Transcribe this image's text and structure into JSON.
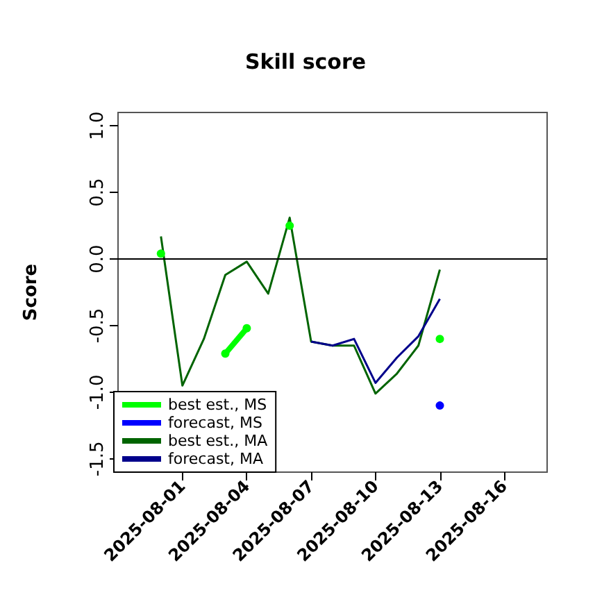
{
  "chart_data": {
    "type": "line",
    "title": "Skill score",
    "ylabel": "Score",
    "x": [
      "2025-07-31",
      "2025-08-01",
      "2025-08-02",
      "2025-08-03",
      "2025-08-04",
      "2025-08-05",
      "2025-08-06",
      "2025-08-07",
      "2025-08-08",
      "2025-08-09",
      "2025-08-10",
      "2025-08-11",
      "2025-08-12",
      "2025-08-13"
    ],
    "series": [
      {
        "name": "best est., MS",
        "color": "#00ff00",
        "marker": "circle",
        "values": [
          0.04,
          null,
          null,
          -0.71,
          -0.52,
          null,
          0.25,
          null,
          null,
          null,
          null,
          null,
          null,
          -0.6
        ]
      },
      {
        "name": "forecast, MS",
        "color": "#0000ff",
        "marker": "circle",
        "values": [
          null,
          null,
          null,
          null,
          null,
          null,
          null,
          null,
          null,
          null,
          null,
          null,
          null,
          -1.1
        ]
      },
      {
        "name": "best est., MA",
        "color": "#006400",
        "values": [
          0.17,
          -0.95,
          -0.6,
          -0.12,
          -0.02,
          -0.26,
          0.31,
          -0.62,
          -0.65,
          -0.65,
          -1.01,
          -0.86,
          -0.65,
          -0.08
        ]
      },
      {
        "name": "forecast, MA",
        "color": "#00008b",
        "values": [
          null,
          null,
          null,
          null,
          null,
          null,
          null,
          -0.62,
          -0.65,
          -0.6,
          -0.93,
          -0.74,
          -0.58,
          -0.3
        ]
      }
    ],
    "xlim": [
      "2025-07-29",
      "2025-08-18"
    ],
    "xticks": [
      "2025-08-01",
      "2025-08-04",
      "2025-08-07",
      "2025-08-10",
      "2025-08-13",
      "2025-08-16"
    ],
    "ylim": [
      -1.6,
      1.1
    ],
    "yticks": [
      {
        "value": -1.5,
        "label": "-1.5"
      },
      {
        "value": -1,
        "label": "-1.0"
      },
      {
        "value": -0.5,
        "label": "-0.5"
      },
      {
        "value": 0,
        "label": "0.0"
      },
      {
        "value": 0.5,
        "label": "0.5"
      },
      {
        "value": 1,
        "label": "1.0"
      }
    ],
    "ref_lines": [
      {
        "axis": "y",
        "value": 0,
        "color": "#000000"
      }
    ],
    "legend": "bottom left",
    "grid": false,
    "marker": "none",
    "line_style": "solid"
  }
}
